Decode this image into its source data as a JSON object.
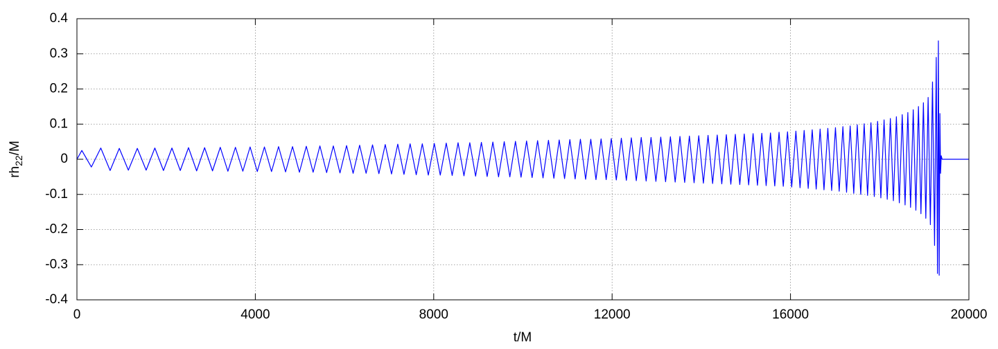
{
  "chart_data": {
    "type": "line",
    "xlabel": "t/M",
    "ylabel": [
      "rh",
      "22",
      "/M"
    ],
    "color": "#0000ff",
    "grid": true,
    "xlim": [
      0,
      20000
    ],
    "xticks": [
      0,
      4000,
      8000,
      12000,
      16000,
      20000
    ],
    "ylim": [
      -0.4,
      0.4
    ],
    "yticks": [
      -0.4,
      -0.3,
      -0.2,
      -0.1,
      0,
      0.1,
      0.2,
      0.3,
      0.4
    ],
    "x": [
      0,
      110,
      324,
      535,
      744,
      950,
      1153,
      1354,
      1552,
      1747,
      1940,
      2130,
      2317,
      2502,
      2684,
      2863,
      3040,
      3214,
      3385,
      3554,
      3720,
      3883,
      4044,
      4204,
      4363,
      4521,
      4678,
      4834,
      4989,
      5143,
      5296,
      5448,
      5599,
      5749,
      5898,
      6046,
      6193,
      6339,
      6484,
      6628,
      6771,
      6913,
      7054,
      7194,
      7333,
      7471,
      7608,
      7744,
      7879,
      8013,
      8147,
      8281,
      8414,
      8546,
      8678,
      8809,
      8939,
      9069,
      9198,
      9326,
      9454,
      9581,
      9707,
      9833,
      9958,
      10082,
      10206,
      10329,
      10451,
      10573,
      10694,
      10814,
      10934,
      11053,
      11171,
      11289,
      11406,
      11522,
      11638,
      11753,
      11867,
      11981,
      12094,
      12207,
      12319,
      12431,
      12542,
      12653,
      12763,
      12873,
      12982,
      13091,
      13199,
      13307,
      13414,
      13521,
      13627,
      13733,
      13838,
      13943,
      14047,
      14151,
      14254,
      14357,
      14459,
      14561,
      14662,
      14763,
      14863,
      14963,
      15062,
      15161,
      15259,
      15357,
      15454,
      15551,
      15647,
      15743,
      15838,
      15933,
      16027,
      16121,
      16214,
      16306,
      16397,
      16487,
      16576,
      16664,
      16751,
      16837,
      16923,
      17008,
      17092,
      17175,
      17257,
      17338,
      17418,
      17497,
      17575,
      17652,
      17728,
      17804,
      17879,
      17953,
      18026,
      18098,
      18169,
      18239,
      18307,
      18374,
      18440,
      18505,
      18569,
      18631,
      18692,
      18752,
      18811,
      18869,
      18925,
      18980,
      19034,
      19086,
      19136,
      19184,
      19230,
      19268,
      19296,
      19316,
      19334,
      19350,
      19365,
      19380,
      19400,
      20000
    ],
    "values": [
      0,
      0.025,
      -0.022,
      0.032,
      -0.032,
      0.031,
      -0.031,
      0.031,
      -0.031,
      0.032,
      -0.032,
      0.032,
      -0.032,
      0.033,
      -0.033,
      0.033,
      -0.033,
      0.034,
      -0.034,
      0.034,
      -0.034,
      0.035,
      -0.035,
      0.035,
      -0.035,
      0.036,
      -0.036,
      0.036,
      -0.037,
      0.037,
      -0.037,
      0.038,
      -0.038,
      0.038,
      -0.039,
      0.039,
      -0.04,
      0.04,
      -0.04,
      0.041,
      -0.041,
      0.042,
      -0.042,
      0.043,
      -0.043,
      0.044,
      -0.044,
      0.044,
      -0.045,
      0.045,
      -0.045,
      0.046,
      -0.046,
      0.047,
      -0.047,
      0.047,
      -0.048,
      0.048,
      -0.049,
      0.049,
      -0.05,
      0.05,
      -0.05,
      0.051,
      -0.051,
      0.052,
      -0.052,
      0.053,
      -0.053,
      0.054,
      -0.054,
      0.055,
      -0.055,
      0.056,
      -0.056,
      0.057,
      -0.057,
      0.057,
      -0.058,
      0.058,
      -0.058,
      0.059,
      -0.059,
      0.06,
      -0.06,
      0.061,
      -0.061,
      0.062,
      -0.062,
      0.062,
      -0.063,
      0.063,
      -0.064,
      0.064,
      -0.065,
      0.065,
      -0.066,
      0.066,
      -0.067,
      0.067,
      -0.068,
      0.068,
      -0.069,
      0.069,
      -0.07,
      0.07,
      -0.071,
      0.071,
      -0.072,
      0.072,
      -0.073,
      0.073,
      -0.074,
      0.074,
      -0.075,
      0.075,
      -0.076,
      0.077,
      -0.077,
      0.078,
      -0.079,
      0.08,
      -0.081,
      0.082,
      -0.083,
      0.084,
      -0.085,
      0.086,
      -0.087,
      0.088,
      -0.089,
      0.09,
      -0.091,
      0.093,
      -0.094,
      0.095,
      -0.097,
      0.098,
      -0.1,
      0.101,
      -0.103,
      0.104,
      -0.106,
      0.108,
      -0.11,
      0.112,
      -0.114,
      0.116,
      -0.118,
      0.121,
      -0.124,
      0.127,
      -0.13,
      0.133,
      -0.137,
      0.141,
      -0.145,
      0.15,
      -0.155,
      0.161,
      -0.168,
      0.176,
      -0.186,
      0.22,
      -0.245,
      0.29,
      -0.325,
      0.337,
      -0.33,
      0.13,
      -0.04,
      0.01,
      0,
      0
    ]
  }
}
